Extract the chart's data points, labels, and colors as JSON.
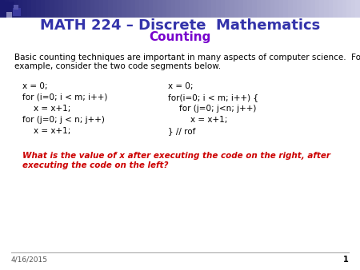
{
  "title": "MATH 224 – Discrete  Mathematics",
  "subtitle": "Counting",
  "title_color": "#3333AA",
  "subtitle_color": "#7700CC",
  "body_text": "Basic counting techniques are important in many aspects of computer science.  For\nexample, consider the two code segments below.",
  "code_left": [
    "x = 0;",
    "for (i=0; i < m; i++)",
    "    x = x+1;",
    "for (j=0; j < n; j++)",
    "    x = x+1;"
  ],
  "code_right": [
    "x = 0;",
    "for(i=0; i < m; i++) {",
    "    for (j=0; j<n; j++)",
    "        x = x+1;",
    "} // rof"
  ],
  "question_line1": "What is the value of x after executing the code on the right, after",
  "question_line2": "executing the code on the left?",
  "question_color": "#CC0000",
  "date_text": "4/16/2015",
  "page_num": "1",
  "bg_color": "#FFFFFF",
  "header_gradient_left": "#1a1a6e",
  "header_gradient_right": "#d0d0e8",
  "sq1_color": "#1a1a6e",
  "sq2_color": "#3333aa",
  "sq3_color": "#aaaacc"
}
